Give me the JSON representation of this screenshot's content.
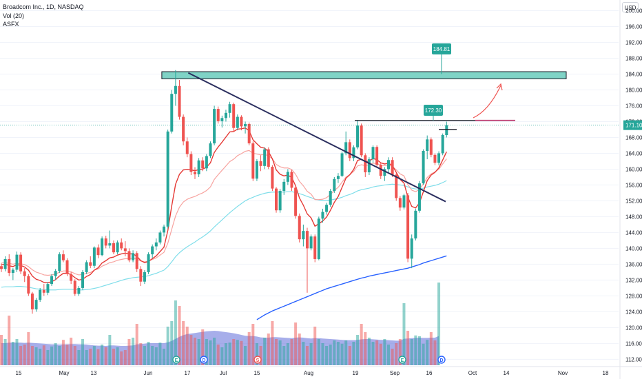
{
  "header": {
    "symbol_line": "Broadcom Inc., 1D, NASDAQ",
    "volume_line": "Vol (20)",
    "indicator_line": "ASFX"
  },
  "currency": "USD",
  "price_tag": "171.10",
  "callouts": {
    "upper": "184.81",
    "lower": "172.30"
  },
  "event_markers": [
    "E",
    "D",
    "S",
    "E",
    "D"
  ],
  "colors": {
    "up": "#26a69a",
    "down": "#ef5350",
    "ema_short": "#e53935",
    "ema_mid": "#f7a39f",
    "sma_mid": "#80deea",
    "sma_long": "#2962ff",
    "zone_fill": "#7fd3c6",
    "trendline": "#2a2e5e",
    "volume_area": "#5f6bd8"
  },
  "chart_data": {
    "type": "candlestick",
    "title": "Broadcom Inc., 1D, NASDAQ",
    "y_axis": {
      "ticks": [
        "200.00",
        "196.00",
        "192.00",
        "188.00",
        "184.00",
        "180.00",
        "176.00",
        "172.00",
        "168.00",
        "164.00",
        "160.00",
        "156.00",
        "152.00",
        "148.00",
        "144.00",
        "140.00",
        "136.00",
        "132.00",
        "128.00",
        "124.00",
        "120.00",
        "116.00",
        "112.00"
      ],
      "range": [
        110.5,
        202
      ]
    },
    "x_axis": {
      "ticks": [
        "15",
        "May",
        "13",
        "Jun",
        "17",
        "Jul",
        "15",
        "Aug",
        "19",
        "Sep",
        "16",
        "Oct",
        "14",
        "Nov",
        "18"
      ]
    },
    "horizontal_zone": {
      "from": 182.8,
      "to": 184.6
    },
    "resistance_level": 172.3,
    "short_level": 170.0,
    "trendline": {
      "start": 184.3,
      "end": 151.8
    },
    "candles": [
      [
        135.5,
        136.2,
        134.0,
        134.8
      ],
      [
        134.8,
        138.0,
        134.2,
        137.3
      ],
      [
        137.3,
        138.5,
        133.0,
        133.8
      ],
      [
        133.8,
        135.0,
        132.0,
        134.6
      ],
      [
        134.6,
        139.2,
        134.0,
        138.4
      ],
      [
        138.4,
        139.0,
        133.5,
        134.2
      ],
      [
        134.2,
        135.0,
        131.5,
        133.0
      ],
      [
        133.0,
        133.5,
        128.0,
        128.6
      ],
      [
        128.6,
        129.0,
        123.5,
        124.6
      ],
      [
        124.6,
        127.5,
        124.0,
        127.0
      ],
      [
        127.0,
        130.0,
        126.5,
        129.5
      ],
      [
        129.5,
        131.0,
        128.0,
        128.8
      ],
      [
        128.8,
        131.5,
        128.2,
        131.0
      ],
      [
        131.0,
        133.5,
        130.5,
        133.0
      ],
      [
        133.0,
        134.8,
        132.0,
        134.3
      ],
      [
        134.3,
        139.0,
        133.8,
        138.5
      ],
      [
        138.5,
        139.5,
        136.5,
        137.0
      ],
      [
        137.0,
        137.5,
        133.0,
        133.5
      ],
      [
        133.5,
        134.0,
        131.0,
        131.8
      ],
      [
        131.8,
        132.2,
        128.0,
        128.5
      ],
      [
        128.5,
        130.5,
        128.0,
        130.0
      ],
      [
        130.0,
        134.5,
        129.5,
        134.0
      ],
      [
        134.0,
        137.0,
        133.5,
        136.5
      ],
      [
        136.5,
        138.0,
        135.0,
        135.6
      ],
      [
        135.6,
        140.5,
        135.0,
        140.2
      ],
      [
        140.2,
        141.0,
        137.5,
        138.3
      ],
      [
        138.3,
        143.0,
        138.0,
        142.5
      ],
      [
        142.5,
        143.2,
        140.0,
        140.7
      ],
      [
        140.7,
        144.5,
        140.0,
        141.3
      ],
      [
        141.3,
        142.0,
        138.5,
        139.0
      ],
      [
        139.0,
        142.0,
        138.5,
        141.5
      ],
      [
        141.5,
        142.5,
        139.5,
        140.0
      ],
      [
        140.0,
        141.8,
        138.0,
        139.3
      ],
      [
        139.3,
        140.0,
        136.5,
        137.0
      ],
      [
        137.0,
        139.5,
        136.5,
        138.8
      ],
      [
        138.8,
        139.3,
        134.0,
        134.8
      ],
      [
        134.8,
        135.5,
        130.5,
        131.6
      ],
      [
        131.6,
        134.5,
        131.0,
        134.0
      ],
      [
        134.0,
        139.0,
        133.5,
        138.5
      ],
      [
        138.5,
        141.0,
        137.5,
        140.5
      ],
      [
        140.5,
        142.5,
        139.5,
        141.5
      ],
      [
        141.5,
        144.5,
        141.0,
        144.0
      ],
      [
        144.0,
        146.0,
        143.0,
        145.5
      ],
      [
        145.5,
        170.0,
        145.0,
        169.5
      ],
      [
        169.5,
        180.0,
        169.0,
        179.0
      ],
      [
        179.0,
        185.0,
        176.0,
        181.0
      ],
      [
        181.0,
        182.5,
        172.5,
        173.2
      ],
      [
        173.2,
        173.8,
        166.0,
        167.0
      ],
      [
        167.0,
        168.0,
        163.0,
        163.8
      ],
      [
        163.8,
        164.5,
        158.5,
        159.3
      ],
      [
        159.3,
        160.5,
        157.5,
        158.7
      ],
      [
        158.7,
        162.8,
        158.0,
        162.2
      ],
      [
        162.2,
        163.0,
        159.5,
        160.2
      ],
      [
        160.2,
        163.8,
        159.5,
        163.3
      ],
      [
        163.3,
        167.0,
        162.8,
        166.5
      ],
      [
        166.5,
        176.0,
        166.0,
        175.2
      ],
      [
        175.2,
        175.8,
        171.5,
        172.1
      ],
      [
        172.1,
        173.5,
        170.5,
        172.9
      ],
      [
        172.9,
        175.0,
        172.0,
        174.2
      ],
      [
        174.2,
        177.0,
        173.0,
        176.4
      ],
      [
        176.4,
        176.8,
        169.5,
        170.4
      ],
      [
        170.4,
        173.8,
        169.8,
        173.2
      ],
      [
        173.2,
        173.6,
        169.8,
        170.8
      ],
      [
        170.8,
        172.0,
        169.0,
        171.4
      ],
      [
        171.4,
        171.8,
        166.0,
        166.5
      ],
      [
        166.5,
        167.0,
        157.0,
        157.6
      ],
      [
        157.6,
        162.5,
        157.0,
        162.0
      ],
      [
        162.0,
        163.5,
        159.5,
        160.8
      ],
      [
        160.8,
        165.5,
        160.0,
        165.0
      ],
      [
        165.0,
        165.5,
        160.0,
        160.6
      ],
      [
        160.6,
        161.0,
        154.5,
        155.1
      ],
      [
        155.1,
        155.5,
        149.0,
        149.6
      ],
      [
        149.6,
        155.0,
        149.0,
        154.5
      ],
      [
        154.5,
        157.5,
        153.5,
        156.8
      ],
      [
        156.8,
        160.0,
        156.0,
        159.3
      ],
      [
        159.3,
        159.8,
        154.5,
        155.3
      ],
      [
        155.3,
        155.8,
        147.5,
        148.2
      ],
      [
        148.2,
        148.8,
        141.5,
        142.3
      ],
      [
        142.3,
        146.0,
        140.5,
        144.4
      ],
      [
        144.4,
        145.2,
        128.8,
        140.0
      ],
      [
        140.0,
        143.5,
        139.5,
        143.0
      ],
      [
        143.0,
        143.5,
        136.5,
        137.3
      ],
      [
        137.3,
        148.0,
        137.0,
        147.5
      ],
      [
        147.5,
        150.0,
        146.5,
        149.2
      ],
      [
        149.2,
        151.5,
        148.5,
        151.0
      ],
      [
        151.0,
        155.0,
        150.5,
        154.5
      ],
      [
        154.5,
        158.0,
        154.0,
        157.5
      ],
      [
        157.5,
        159.0,
        156.5,
        158.3
      ],
      [
        158.3,
        164.5,
        158.0,
        164.0
      ],
      [
        164.0,
        169.5,
        163.5,
        166.8
      ],
      [
        166.8,
        167.5,
        162.0,
        162.8
      ],
      [
        162.8,
        166.0,
        162.0,
        165.5
      ],
      [
        165.5,
        172.3,
        165.0,
        171.0
      ],
      [
        171.0,
        171.5,
        163.0,
        163.5
      ],
      [
        163.5,
        164.0,
        158.0,
        159.2
      ],
      [
        159.2,
        163.0,
        158.5,
        162.5
      ],
      [
        162.5,
        166.0,
        161.5,
        165.6
      ],
      [
        165.6,
        166.0,
        160.5,
        161.1
      ],
      [
        161.1,
        161.6,
        157.5,
        158.3
      ],
      [
        158.3,
        160.5,
        157.0,
        160.0
      ],
      [
        160.0,
        163.0,
        159.0,
        162.3
      ],
      [
        162.3,
        163.0,
        158.0,
        158.6
      ],
      [
        158.6,
        159.0,
        152.0,
        152.7
      ],
      [
        152.7,
        153.2,
        149.5,
        150.3
      ],
      [
        150.3,
        153.8,
        149.8,
        153.4
      ],
      [
        153.4,
        154.0,
        136.5,
        137.4
      ],
      [
        137.4,
        143.5,
        135.0,
        142.5
      ],
      [
        142.5,
        150.0,
        142.0,
        149.5
      ],
      [
        149.5,
        157.0,
        149.0,
        156.4
      ],
      [
        156.4,
        165.0,
        156.0,
        164.6
      ],
      [
        164.6,
        168.5,
        162.5,
        167.5
      ],
      [
        167.5,
        168.0,
        163.0,
        163.6
      ],
      [
        163.6,
        164.0,
        161.0,
        161.6
      ],
      [
        161.6,
        164.5,
        161.0,
        164.0
      ],
      [
        164.0,
        169.0,
        163.5,
        168.6
      ],
      [
        168.6,
        172.0,
        168.0,
        171.1
      ]
    ],
    "volumes": [
      110,
      95,
      180,
      85,
      95,
      70,
      75,
      120,
      70,
      65,
      60,
      72,
      55,
      68,
      80,
      70,
      92,
      75,
      100,
      70,
      55,
      95,
      55,
      60,
      70,
      58,
      75,
      65,
      110,
      60,
      65,
      50,
      55,
      95,
      100,
      150,
      80,
      70,
      85,
      70,
      65,
      82,
      60,
      140,
      160,
      235,
      215,
      160,
      140,
      110,
      100,
      95,
      130,
      95,
      90,
      100,
      75,
      65,
      80,
      82,
      95,
      92,
      88,
      70,
      120,
      150,
      80,
      70,
      100,
      115,
      160,
      95,
      90,
      70,
      80,
      95,
      155,
      115,
      85,
      70,
      80,
      140,
      95,
      80,
      70,
      75,
      90,
      85,
      78,
      90,
      70,
      85,
      110,
      150,
      120,
      100,
      85,
      90,
      78,
      95,
      75,
      60,
      80,
      95,
      225,
      125,
      95,
      108,
      105,
      78,
      92,
      120,
      90,
      300
    ],
    "ema_short": [
      135.8,
      136.1,
      135.6,
      135.4,
      135.9,
      135.7,
      135.3,
      134.5,
      133.0,
      132.2,
      131.9,
      131.4,
      131.3,
      131.6,
      132.1,
      133.0,
      133.7,
      133.7,
      133.4,
      132.6,
      132.0,
      132.2,
      132.9,
      133.4,
      134.5,
      135.1,
      136.3,
      136.9,
      137.6,
      137.8,
      138.3,
      138.6,
      138.8,
      138.6,
      138.6,
      138.0,
      136.9,
      136.4,
      136.7,
      137.4,
      138.1,
      139.2,
      140.3,
      144.5,
      150.7,
      156.2,
      158.7,
      159.8,
      159.9,
      159.8,
      159.6,
      159.9,
      160.0,
      160.5,
      161.6,
      164.2,
      165.6,
      166.8,
      168.1,
      169.4,
      169.5,
      170.1,
      170.2,
      170.4,
      169.7,
      167.4,
      166.4,
      165.5,
      165.3,
      164.4,
      162.6,
      159.8,
      158.7,
      158.3,
      158.5,
      157.9,
      155.8,
      152.7,
      150.9,
      148.7,
      147.7,
      145.6,
      146.2,
      146.9,
      147.9,
      149.6,
      151.6,
      153.1,
      155.4,
      157.7,
      158.6,
      159.9,
      162.2,
      162.5,
      161.9,
      162.0,
      162.7,
      162.4,
      161.6,
      161.3,
      161.5,
      160.9,
      159.2,
      157.4,
      156.5,
      152.9,
      150.6,
      150.2,
      151.5,
      154.3,
      157.1,
      158.5,
      159.2,
      160.3,
      162.3,
      164.4
    ],
    "ema_mid": [
      136.3,
      136.4,
      136.2,
      136.0,
      136.2,
      136.1,
      135.9,
      135.4,
      134.6,
      134.0,
      133.7,
      133.3,
      133.2,
      133.3,
      133.5,
      134.0,
      134.3,
      134.3,
      134.1,
      133.6,
      133.3,
      133.4,
      133.7,
      133.9,
      134.5,
      134.8,
      135.5,
      135.9,
      136.4,
      136.6,
      137.0,
      137.2,
      137.4,
      137.4,
      137.5,
      137.3,
      136.8,
      136.6,
      136.8,
      137.2,
      137.6,
      138.3,
      139.0,
      141.3,
      144.8,
      148.2,
      150.4,
      151.7,
      152.4,
      152.8,
      153.1,
      153.6,
      154.0,
      154.6,
      155.5,
      157.4,
      158.6,
      159.7,
      160.8,
      161.9,
      162.5,
      163.4,
      163.9,
      164.5,
      164.7,
      164.0,
      163.8,
      163.6,
      163.7,
      163.4,
      162.6,
      161.2,
      160.6,
      160.3,
      160.3,
      159.9,
      158.7,
      156.9,
      155.8,
      154.4,
      153.7,
      152.3,
      152.3,
      152.4,
      152.8,
      153.6,
      154.6,
      155.4,
      156.7,
      158.0,
      158.6,
      159.4,
      160.8,
      161.1,
      160.9,
      161.1,
      161.5,
      161.4,
      161.0,
      160.9,
      161.0,
      160.7,
      159.8,
      158.8,
      158.3,
      156.1,
      154.7,
      154.3,
      154.9,
      156.3,
      157.9,
      158.8,
      159.3,
      160.0,
      161.3,
      162.6
    ],
    "sma_mid": [
      130.2,
      130.3,
      130.3,
      130.3,
      130.4,
      130.4,
      130.3,
      130.2,
      130.0,
      129.8,
      129.7,
      129.6,
      129.5,
      129.5,
      129.5,
      129.6,
      129.7,
      129.7,
      129.7,
      129.6,
      129.5,
      129.5,
      129.6,
      129.7,
      129.9,
      130.1,
      130.4,
      130.7,
      131.0,
      131.3,
      131.6,
      131.9,
      132.2,
      132.4,
      132.6,
      132.7,
      132.8,
      132.9,
      133.1,
      133.4,
      133.7,
      134.1,
      134.5,
      135.4,
      136.6,
      137.9,
      138.9,
      139.7,
      140.4,
      141.0,
      141.6,
      142.3,
      142.9,
      143.6,
      144.4,
      145.4,
      146.3,
      147.2,
      148.1,
      149.0,
      149.8,
      150.6,
      151.3,
      152.0,
      152.5,
      152.9,
      153.3,
      153.6,
      153.9,
      154.1,
      154.2,
      154.2,
      154.2,
      154.2,
      154.3,
      154.3,
      154.1,
      153.8,
      153.5,
      153.1,
      152.8,
      152.4,
      152.2,
      152.1,
      152.1,
      152.2,
      152.4,
      152.6,
      152.9,
      153.3,
      153.6,
      154.0,
      154.5,
      154.8,
      155.0,
      155.2,
      155.5,
      155.7,
      155.8,
      156.0,
      156.1,
      156.2,
      156.1,
      156.0,
      155.9,
      155.5,
      155.2,
      155.0,
      155.0,
      155.2,
      155.5,
      155.7,
      155.9,
      156.2,
      156.6,
      157.1
    ],
    "sma_long": [
      null,
      null,
      null,
      null,
      null,
      null,
      null,
      null,
      null,
      null,
      null,
      null,
      null,
      null,
      null,
      null,
      null,
      null,
      null,
      null,
      null,
      null,
      null,
      null,
      null,
      null,
      null,
      null,
      null,
      null,
      null,
      null,
      null,
      null,
      null,
      null,
      null,
      null,
      null,
      null,
      null,
      null,
      null,
      null,
      null,
      null,
      null,
      null,
      null,
      null,
      null,
      null,
      null,
      null,
      null,
      null,
      null,
      null,
      null,
      null,
      null,
      null,
      null,
      null,
      null,
      null,
      122.0,
      122.6,
      123.2,
      123.7,
      124.2,
      124.6,
      125.0,
      125.4,
      125.8,
      126.2,
      126.6,
      127.0,
      127.4,
      127.8,
      128.2,
      128.6,
      129.0,
      129.4,
      129.8,
      130.1,
      130.4,
      130.7,
      131.0,
      131.3,
      131.6,
      131.9,
      132.2,
      132.5,
      132.7,
      133.0,
      133.2,
      133.4,
      133.6,
      133.8,
      134.0,
      134.2,
      134.4,
      134.6,
      134.8,
      135.0,
      135.3,
      135.6,
      135.9,
      136.3,
      136.6,
      136.9,
      137.2,
      137.5,
      137.8,
      138.1
    ],
    "volume_ma": [
      80,
      80,
      82,
      82,
      82,
      82,
      81,
      82,
      81,
      80,
      79,
      78,
      77,
      76,
      76,
      75,
      76,
      76,
      77,
      77,
      76,
      76,
      75,
      73,
      72,
      71,
      71,
      70,
      72,
      72,
      71,
      70,
      70,
      71,
      72,
      76,
      77,
      78,
      80,
      80,
      80,
      80,
      80,
      83,
      88,
      96,
      103,
      109,
      113,
      115,
      117,
      119,
      121,
      123,
      124,
      125,
      124,
      122,
      120,
      118,
      116,
      113,
      110,
      107,
      106,
      106,
      104,
      101,
      100,
      100,
      102,
      102,
      101,
      100,
      99,
      98,
      100,
      101,
      100,
      98,
      97,
      98,
      98,
      97,
      96,
      95,
      94,
      93,
      92,
      91,
      91,
      91,
      92,
      94,
      95,
      95,
      94,
      93,
      92,
      92,
      91,
      90,
      89,
      89,
      96,
      97,
      98,
      99,
      100,
      99,
      99,
      100,
      100,
      106
    ]
  }
}
